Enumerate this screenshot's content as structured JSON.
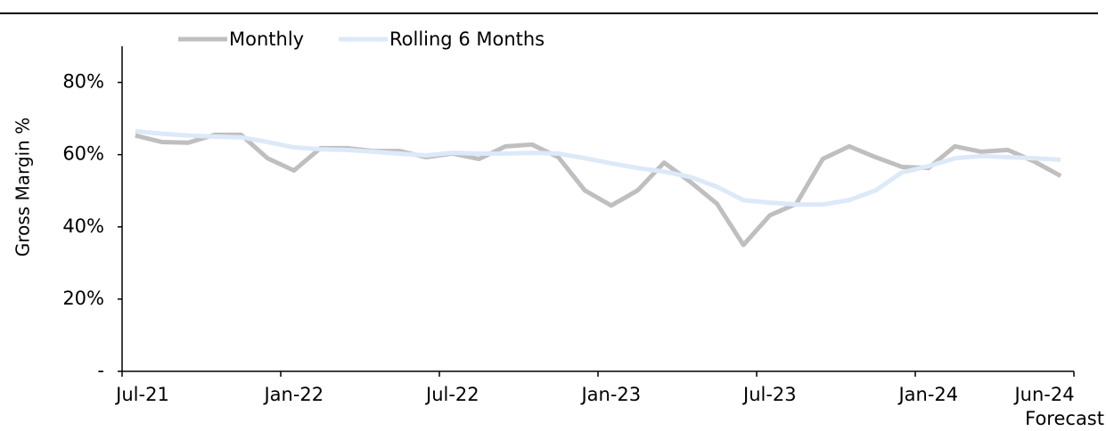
{
  "chart_data": {
    "type": "line",
    "y_label": "Gross Margin %",
    "annotation": "Forecast",
    "categories": [
      "Jul-21",
      null,
      null,
      null,
      null,
      null,
      "Jan-22",
      null,
      null,
      null,
      null,
      null,
      "Jul-22",
      null,
      null,
      null,
      null,
      null,
      "Jan-23",
      null,
      null,
      null,
      null,
      null,
      "Jul-23",
      null,
      null,
      null,
      null,
      null,
      "Jan-24",
      null,
      null,
      null,
      null,
      "Jun-24"
    ],
    "series": [
      {
        "name": "Monthly",
        "color": "#bfbfbf",
        "values": [
          65.3,
          63.5,
          63.3,
          65.5,
          65.5,
          59,
          55.6,
          61.8,
          61.8,
          61,
          61,
          59.3,
          60.3,
          58.8,
          62.3,
          62.8,
          59.3,
          50.1,
          45.9,
          50.1,
          57.8,
          52.4,
          46.4,
          35,
          43.2,
          46.4,
          58.8,
          62.3,
          59.3,
          56.6,
          56.3,
          62.3,
          60.8,
          61.3,
          58.1,
          54.1
        ]
      },
      {
        "name": "Rolling 6 Months",
        "color": "#dce9f8",
        "values": [
          66.5,
          65.8,
          65.3,
          65,
          64.8,
          63.5,
          62,
          61.5,
          61.3,
          60.8,
          60.3,
          59.8,
          60.5,
          60.3,
          60.3,
          60.5,
          60.3,
          59,
          57.6,
          56.3,
          55.3,
          53.8,
          51.1,
          47.4,
          46.7,
          46.2,
          46.2,
          47.4,
          50.1,
          55.1,
          56.8,
          59,
          59.6,
          59.3,
          59,
          58.6
        ]
      }
    ],
    "ylim": [
      0,
      90
    ],
    "yticks": [
      {
        "value": 0,
        "label": "-"
      },
      {
        "value": 20,
        "label": "20%"
      },
      {
        "value": 40,
        "label": "40%"
      },
      {
        "value": 60,
        "label": "60%"
      },
      {
        "value": 80,
        "label": "80%"
      }
    ],
    "legend": "top-left",
    "grid": false
  }
}
